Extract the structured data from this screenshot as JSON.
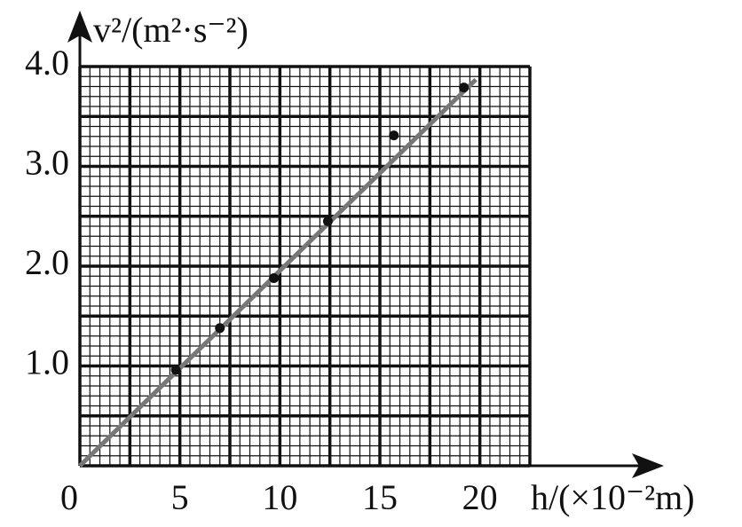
{
  "chart_data": {
    "type": "scatter",
    "x_label": "h/(×10⁻²m)",
    "y_label": "v²/(m²·s⁻²)",
    "xlim": [
      0,
      22.5
    ],
    "ylim": [
      0,
      4
    ],
    "xticks": [
      0,
      5,
      10,
      15,
      20
    ],
    "yticks": [
      {
        "value": 1,
        "label": "1.0"
      },
      {
        "value": 2,
        "label": "2.0"
      },
      {
        "value": 3,
        "label": "3.0"
      },
      {
        "value": 4,
        "label": "4.0"
      }
    ],
    "grid": true,
    "series": [
      {
        "color": "#111111",
        "x": [
          4.8,
          7.0,
          9.7,
          12.4,
          15.7,
          19.2
        ],
        "y": [
          0.96,
          1.38,
          1.88,
          2.45,
          3.31,
          3.79
        ]
      }
    ],
    "fit_line": {
      "color": "#777777",
      "x": [
        0,
        19.8
      ],
      "y": [
        0,
        3.87
      ]
    }
  }
}
